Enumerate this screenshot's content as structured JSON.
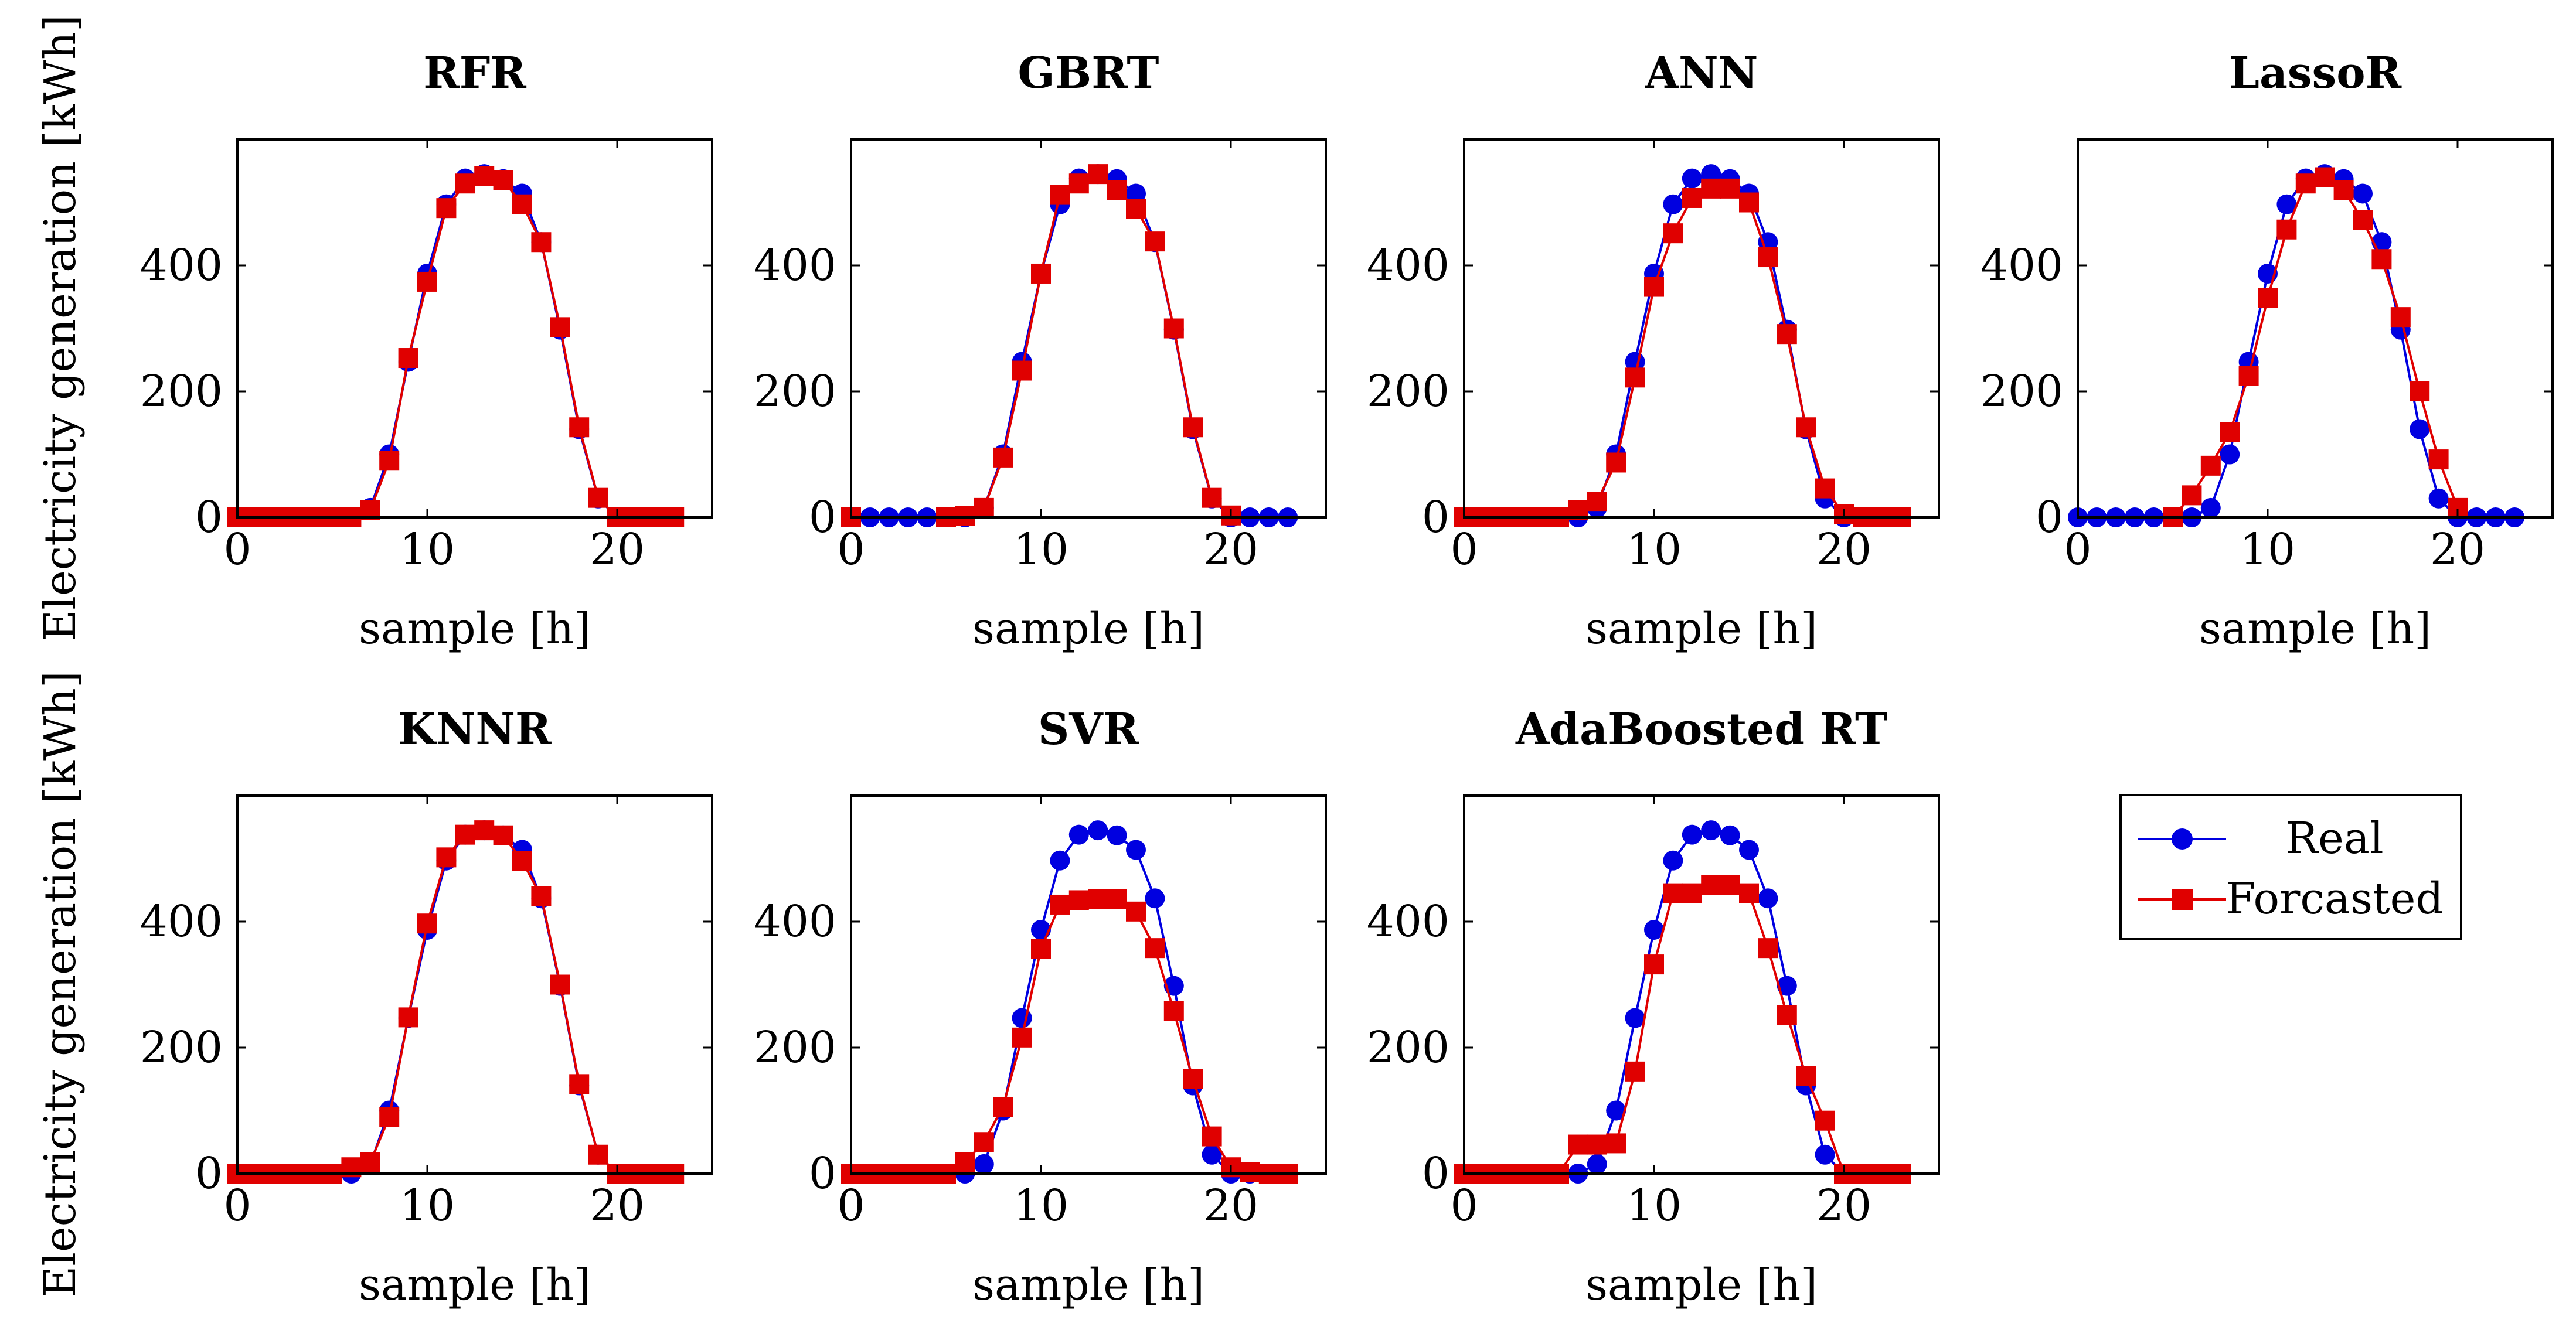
{
  "figure": {
    "ylabel_top": "Electricity generation [kWh]",
    "ylabel_bottom": "Electricity generation [kWh]"
  },
  "legend": {
    "items": [
      {
        "label": "Real",
        "color": "#0000e0",
        "marker": "circle"
      },
      {
        "label": "Forcasted",
        "color": "#e00000",
        "marker": "square"
      }
    ]
  },
  "chart_data": [
    {
      "type": "line",
      "title": "RFR",
      "xlabel": "sample [h]",
      "ylabel": "Electricity generation [kWh]",
      "xlim": [
        0,
        25
      ],
      "ylim": [
        0,
        600
      ],
      "xticks": [
        0,
        10,
        20
      ],
      "yticks": [
        0,
        200,
        400
      ],
      "x": [
        0,
        1,
        2,
        3,
        4,
        5,
        6,
        7,
        8,
        9,
        10,
        11,
        12,
        13,
        14,
        15,
        16,
        17,
        18,
        19,
        20,
        21,
        22,
        23
      ],
      "series": [
        {
          "name": "Real",
          "values": [
            0,
            0,
            0,
            0,
            0,
            0,
            0,
            15,
            100,
            247,
            387,
            497,
            538,
            545,
            537,
            514,
            437,
            298,
            140,
            30,
            0,
            0,
            0,
            0
          ]
        },
        {
          "name": "Forcasted",
          "values": [
            0,
            0,
            0,
            0,
            0,
            0,
            0,
            12,
            90,
            253,
            374,
            491,
            530,
            542,
            535,
            497,
            437,
            302,
            143,
            31,
            0,
            0,
            0,
            0
          ]
        }
      ]
    },
    {
      "type": "line",
      "title": "GBRT",
      "xlabel": "sample [h]",
      "ylabel": "",
      "xlim": [
        0,
        25
      ],
      "ylim": [
        0,
        600
      ],
      "xticks": [
        0,
        10,
        20
      ],
      "yticks": [
        0,
        200,
        400
      ],
      "x": [
        0,
        1,
        2,
        3,
        4,
        5,
        6,
        7,
        8,
        9,
        10,
        11,
        12,
        13,
        14,
        15,
        16,
        17,
        18,
        19,
        20,
        21,
        22,
        23
      ],
      "series": [
        {
          "name": "Real",
          "values": [
            0,
            0,
            0,
            0,
            0,
            0,
            0,
            15,
            100,
            247,
            387,
            497,
            538,
            545,
            537,
            514,
            437,
            298,
            140,
            30,
            0,
            0,
            0,
            0
          ]
        },
        {
          "name": "Forcasted",
          "values": [
            0,
            null,
            null,
            null,
            null,
            0,
            2,
            15,
            95,
            233,
            387,
            512,
            530,
            545,
            520,
            490,
            438,
            300,
            143,
            31,
            3,
            null,
            null,
            null
          ]
        }
      ]
    },
    {
      "type": "line",
      "title": "ANN",
      "xlabel": "sample [h]",
      "ylabel": "",
      "xlim": [
        0,
        25
      ],
      "ylim": [
        0,
        600
      ],
      "xticks": [
        0,
        10,
        20
      ],
      "yticks": [
        0,
        200,
        400
      ],
      "x": [
        0,
        1,
        2,
        3,
        4,
        5,
        6,
        7,
        8,
        9,
        10,
        11,
        12,
        13,
        14,
        15,
        16,
        17,
        18,
        19,
        20,
        21,
        22,
        23
      ],
      "series": [
        {
          "name": "Real",
          "values": [
            0,
            0,
            0,
            0,
            0,
            0,
            0,
            15,
            100,
            247,
            387,
            497,
            538,
            545,
            537,
            514,
            437,
            298,
            140,
            30,
            0,
            0,
            0,
            0
          ]
        },
        {
          "name": "Forcasted",
          "values": [
            0,
            0,
            0,
            0,
            0,
            0,
            12,
            25,
            87,
            222,
            366,
            451,
            507,
            522,
            522,
            500,
            413,
            291,
            143,
            46,
            5,
            0,
            0,
            0
          ]
        }
      ]
    },
    {
      "type": "line",
      "title": "LassoR",
      "xlabel": "sample [h]",
      "ylabel": "",
      "xlim": [
        0,
        25
      ],
      "ylim": [
        0,
        600
      ],
      "xticks": [
        0,
        10,
        20
      ],
      "yticks": [
        0,
        200,
        400
      ],
      "x": [
        0,
        1,
        2,
        3,
        4,
        5,
        6,
        7,
        8,
        9,
        10,
        11,
        12,
        13,
        14,
        15,
        16,
        17,
        18,
        19,
        20,
        21,
        22,
        23
      ],
      "series": [
        {
          "name": "Real",
          "values": [
            0,
            0,
            0,
            0,
            0,
            0,
            0,
            15,
            100,
            247,
            387,
            497,
            538,
            545,
            537,
            514,
            437,
            298,
            140,
            30,
            0,
            0,
            0,
            0
          ]
        },
        {
          "name": "Forcasted",
          "values": [
            null,
            null,
            null,
            null,
            null,
            0,
            35,
            82,
            135,
            225,
            348,
            457,
            530,
            540,
            520,
            472,
            410,
            318,
            200,
            92,
            15,
            null,
            null,
            null
          ]
        }
      ]
    },
    {
      "type": "line",
      "title": "KNNR",
      "xlabel": "sample [h]",
      "ylabel": "Electricity generation [kWh]",
      "xlim": [
        0,
        25
      ],
      "ylim": [
        0,
        600
      ],
      "xticks": [
        0,
        10,
        20
      ],
      "yticks": [
        0,
        200,
        400
      ],
      "x": [
        0,
        1,
        2,
        3,
        4,
        5,
        6,
        7,
        8,
        9,
        10,
        11,
        12,
        13,
        14,
        15,
        16,
        17,
        18,
        19,
        20,
        21,
        22,
        23
      ],
      "series": [
        {
          "name": "Real",
          "values": [
            0,
            0,
            0,
            0,
            0,
            0,
            0,
            15,
            100,
            247,
            387,
            497,
            538,
            545,
            537,
            514,
            437,
            298,
            140,
            30,
            0,
            0,
            0,
            0
          ]
        },
        {
          "name": "Forcasted",
          "values": [
            0,
            0,
            0,
            0,
            0,
            0,
            10,
            18,
            90,
            248,
            397,
            502,
            538,
            545,
            537,
            496,
            440,
            300,
            142,
            30,
            0,
            0,
            0,
            0
          ]
        }
      ]
    },
    {
      "type": "line",
      "title": "SVR",
      "xlabel": "sample [h]",
      "ylabel": "",
      "xlim": [
        0,
        25
      ],
      "ylim": [
        0,
        600
      ],
      "xticks": [
        0,
        10,
        20
      ],
      "yticks": [
        0,
        200,
        400
      ],
      "x": [
        0,
        1,
        2,
        3,
        4,
        5,
        6,
        7,
        8,
        9,
        10,
        11,
        12,
        13,
        14,
        15,
        16,
        17,
        18,
        19,
        20,
        21,
        22,
        23
      ],
      "series": [
        {
          "name": "Real",
          "values": [
            0,
            0,
            0,
            0,
            0,
            0,
            0,
            15,
            100,
            247,
            387,
            497,
            538,
            545,
            537,
            514,
            437,
            298,
            140,
            30,
            0,
            0,
            0,
            0
          ]
        },
        {
          "name": "Forcasted",
          "values": [
            0,
            0,
            0,
            0,
            0,
            0,
            18,
            50,
            106,
            216,
            357,
            427,
            434,
            436,
            436,
            416,
            358,
            258,
            150,
            59,
            10,
            2,
            0,
            0
          ]
        }
      ]
    },
    {
      "type": "line",
      "title": "AdaBoosted RT",
      "xlabel": "sample [h]",
      "ylabel": "",
      "xlim": [
        0,
        25
      ],
      "ylim": [
        0,
        600
      ],
      "xticks": [
        0,
        10,
        20
      ],
      "yticks": [
        0,
        200,
        400
      ],
      "x": [
        0,
        1,
        2,
        3,
        4,
        5,
        6,
        7,
        8,
        9,
        10,
        11,
        12,
        13,
        14,
        15,
        16,
        17,
        18,
        19,
        20,
        21,
        22,
        23
      ],
      "series": [
        {
          "name": "Real",
          "values": [
            0,
            0,
            0,
            0,
            0,
            0,
            0,
            15,
            100,
            247,
            387,
            497,
            538,
            545,
            537,
            514,
            437,
            298,
            140,
            30,
            0,
            0,
            0,
            0
          ]
        },
        {
          "name": "Forcasted",
          "values": [
            0,
            0,
            0,
            0,
            0,
            0,
            46,
            46,
            48,
            162,
            332,
            445,
            445,
            458,
            458,
            445,
            358,
            252,
            155,
            84,
            0,
            0,
            0,
            0
          ]
        }
      ]
    }
  ]
}
